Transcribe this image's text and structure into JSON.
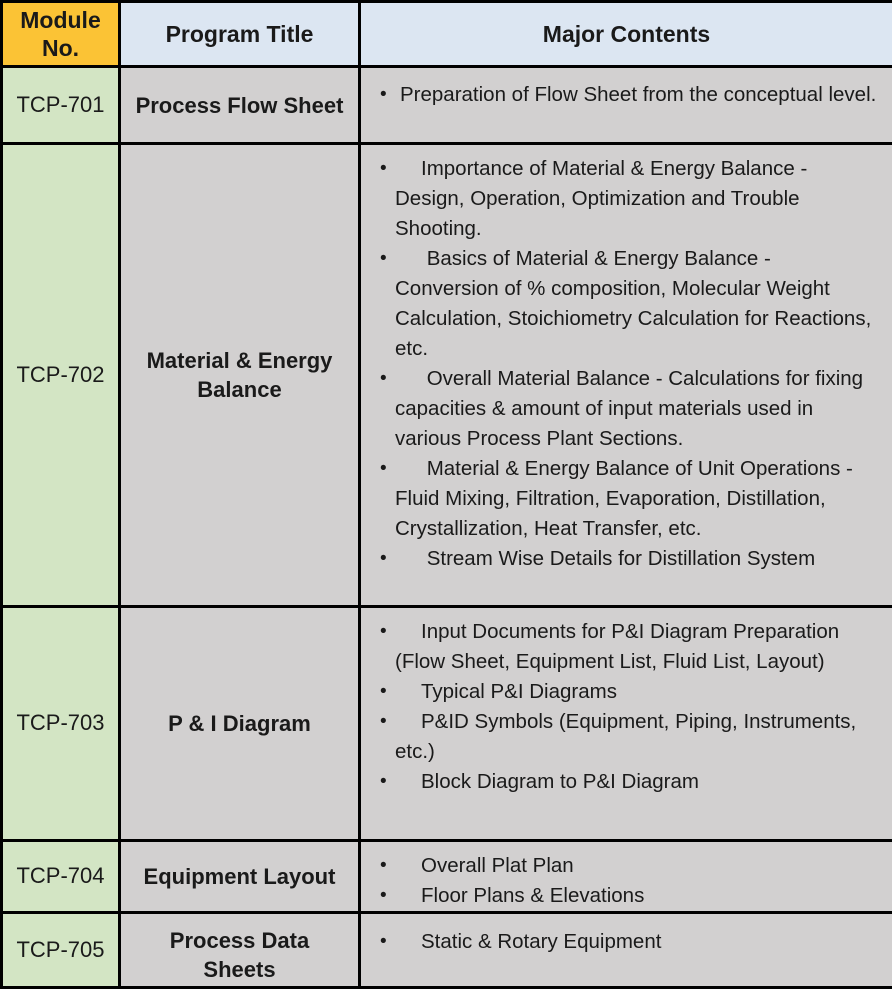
{
  "colors": {
    "header_module_bg": "#fbc335",
    "header_bg": "#dce6f2",
    "module_bg": "#d3e5c4",
    "cell_bg": "#d2d0d0",
    "border": "#000000"
  },
  "table": {
    "columns": [
      {
        "label": "Module No."
      },
      {
        "label": "Program Title"
      },
      {
        "label": "Major Contents"
      }
    ],
    "rows": [
      {
        "module": "TCP-701",
        "title": "Process Flow Sheet",
        "bullets": [
          "Preparation of Flow Sheet from the conceptual level."
        ]
      },
      {
        "module": "TCP-702",
        "title": "Material & Energy Balance",
        "bullets": [
          "Importance of Material & Energy Balance - Design, Operation, Optimization and Trouble Shooting.",
          " Basics of Material & Energy Balance - Conversion of % composition, Molecular Weight Calculation, Stoichiometry Calculation for Reactions, etc.",
          " Overall Material Balance - Calculations for fixing capacities & amount of input materials used in various Process Plant Sections.",
          " Material & Energy Balance of Unit Operations - Fluid Mixing, Filtration, Evaporation, Distillation, Crystallization, Heat Transfer, etc.",
          " Stream Wise Details for Distillation System"
        ]
      },
      {
        "module": "TCP-703",
        "title": "P & I Diagram",
        "bullets": [
          "Input Documents for P&I Diagram Preparation (Flow Sheet, Equipment List, Fluid List, Layout)",
          "Typical P&I Diagrams",
          "P&ID Symbols (Equipment, Piping, Instruments, etc.)",
          "Block Diagram to P&I Diagram"
        ]
      },
      {
        "module": "TCP-704",
        "title": "Equipment Layout",
        "bullets": [
          "Overall Plat Plan",
          "Floor Plans & Elevations"
        ]
      },
      {
        "module": "TCP-705",
        "title": "Process Data Sheets",
        "bullets": [
          "Static & Rotary Equipment"
        ]
      }
    ]
  }
}
